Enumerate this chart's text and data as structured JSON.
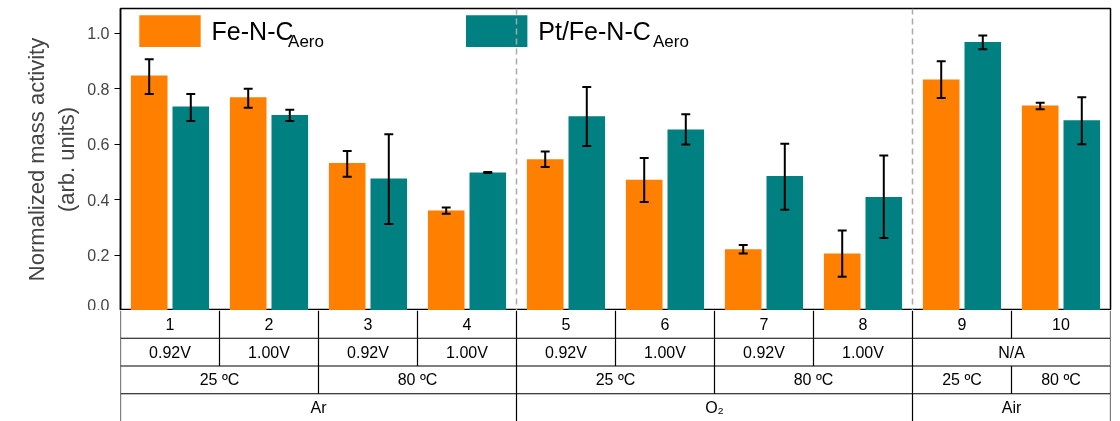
{
  "chart_data": {
    "type": "bar",
    "ylabel": "Normalized mass activity\n(arb. units)",
    "categories": [
      "1",
      "2",
      "3",
      "4",
      "5",
      "6",
      "7",
      "8",
      "9",
      "10"
    ],
    "series": [
      {
        "name": "Fe-N-C$_{Aero}$",
        "color": "#ff7f00",
        "values": [
          0.848,
          0.77,
          0.532,
          0.361,
          0.546,
          0.472,
          0.221,
          0.206,
          0.834,
          0.74
        ],
        "errors": [
          [
            0.781,
            0.907
          ],
          [
            0.732,
            0.8
          ],
          [
            0.483,
            0.576
          ],
          [
            0.349,
            0.372
          ],
          [
            0.518,
            0.574
          ],
          [
            0.392,
            0.55
          ],
          [
            0.206,
            0.236
          ],
          [
            0.122,
            0.289
          ],
          [
            0.767,
            0.9
          ],
          [
            0.726,
            0.75
          ]
        ]
      },
      {
        "name": "Pt/Fe-N-C$_{Aero}$",
        "color": "#008080",
        "values": [
          0.736,
          0.706,
          0.476,
          0.498,
          0.701,
          0.653,
          0.485,
          0.41,
          0.969,
          0.687
        ],
        "errors": [
          [
            0.684,
            0.781
          ],
          [
            0.684,
            0.725
          ],
          [
            0.312,
            0.636
          ],
          [
            0.496,
            0.5
          ],
          [
            0.594,
            0.807
          ],
          [
            0.599,
            0.708
          ],
          [
            0.364,
            0.602
          ],
          [
            0.262,
            0.559
          ],
          [
            0.943,
            0.993
          ],
          [
            0.6,
            0.77
          ]
        ]
      }
    ],
    "ylim": [
      0,
      1.09
    ],
    "yticks": [
      {
        "value": 0,
        "label": "0.0"
      },
      0.2,
      0.4,
      0.6,
      0.8,
      {
        "value": 1,
        "label": "1.0"
      }
    ],
    "annotations": [
      "0.92V",
      "1.00V",
      "0.92V",
      "1.00V",
      "0.92V",
      "1.00V",
      "0.92V",
      "1.00V",
      "N/A",
      "25 ºC",
      "80 ºC",
      "25 ºC",
      "80 ºC",
      "25 ºC",
      "80 ºC",
      "Ar",
      "O₂",
      "Air"
    ],
    "legend": "top",
    "grid": false
  }
}
